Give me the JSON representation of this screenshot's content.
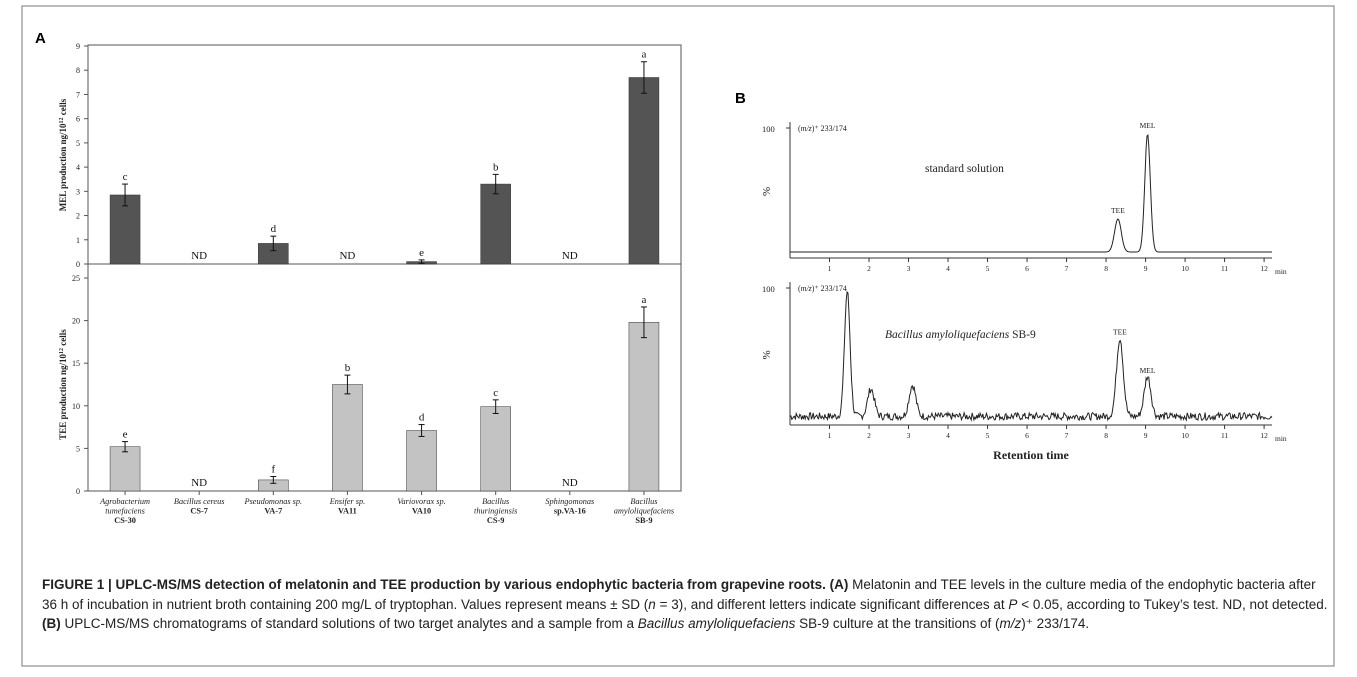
{
  "figure": {
    "panel_a_label": "A",
    "panel_b_label": "B"
  },
  "chart_data": [
    {
      "type": "bar",
      "panel": "A",
      "ylabel": "MEL production ng/10¹² cells",
      "ylim": [
        0,
        9
      ],
      "yticks": [
        0,
        1,
        2,
        3,
        4,
        5,
        6,
        7,
        8,
        9
      ],
      "color": "#545454",
      "categories": [
        [
          "Agrobacterium",
          "tumefaciens",
          "CS-30"
        ],
        [
          "Bacillus cereus",
          "CS-7"
        ],
        [
          "Pseudomonas sp.",
          "VA-7"
        ],
        [
          "Ensifer sp.",
          "VA11"
        ],
        [
          "Variovorax sp.",
          "VA10"
        ],
        [
          "Bacillus",
          "thuringiensis",
          "CS-9"
        ],
        [
          "Sphingomonas",
          "sp.VA-16"
        ],
        [
          "Bacillus",
          "amyloliquefaciens",
          "SB-9"
        ]
      ],
      "values": [
        2.85,
        null,
        0.85,
        null,
        0.1,
        3.3,
        null,
        7.7
      ],
      "errors": [
        0.45,
        null,
        0.3,
        null,
        0.07,
        0.4,
        null,
        0.65
      ],
      "letters": [
        "c",
        "ND",
        "d",
        "ND",
        "e",
        "b",
        "ND",
        "a"
      ]
    },
    {
      "type": "bar",
      "panel": "A",
      "ylabel": "TEE production ng/10¹² cells",
      "ylim": [
        0,
        25
      ],
      "yticks": [
        0,
        5,
        10,
        15,
        20,
        25
      ],
      "color": "#c3c3c3",
      "categories": [
        [
          "Agrobacterium",
          "tumefaciens",
          "CS-30"
        ],
        [
          "Bacillus cereus",
          "CS-7"
        ],
        [
          "Pseudomonas sp.",
          "VA-7"
        ],
        [
          "Ensifer sp.",
          "VA11"
        ],
        [
          "Variovorax sp.",
          "VA10"
        ],
        [
          "Bacillus",
          "thuringiensis",
          "CS-9"
        ],
        [
          "Sphingomonas",
          "sp.VA-16"
        ],
        [
          "Bacillus",
          "amyloliquefaciens",
          "SB-9"
        ]
      ],
      "values": [
        5.2,
        null,
        1.3,
        12.5,
        7.1,
        9.9,
        null,
        19.8
      ],
      "errors": [
        0.6,
        null,
        0.4,
        1.1,
        0.7,
        0.8,
        null,
        1.8
      ],
      "letters": [
        "e",
        "ND",
        "f",
        "b",
        "d",
        "c",
        "ND",
        "a"
      ]
    },
    {
      "type": "line",
      "panel": "B",
      "ylabel": "%",
      "xlim": [
        0,
        12.2
      ],
      "xticks": [
        1,
        2,
        3,
        4,
        5,
        6,
        7,
        8,
        9,
        10,
        11,
        12
      ],
      "x_unit_label": "min",
      "transition_label": "(m/z)⁺ 233/174",
      "y_top_label": "100",
      "annotation": "standard solution",
      "peaks": [
        {
          "name": "TEE",
          "x": 8.3,
          "height": 28
        },
        {
          "name": "MEL",
          "x": 9.05,
          "height": 100
        }
      ]
    },
    {
      "type": "line",
      "panel": "B",
      "ylabel": "%",
      "xlabel": "Retention time",
      "xlim": [
        0,
        12.2
      ],
      "xticks": [
        1,
        2,
        3,
        4,
        5,
        6,
        7,
        8,
        9,
        10,
        11,
        12
      ],
      "x_unit_label": "min",
      "transition_label": "(m/z)⁺ 233/174",
      "y_top_label": "100",
      "annotation_species": "Bacillus amyloliquefaciens",
      "annotation_strain": "SB-9",
      "peaks": [
        {
          "name": "",
          "x": 1.45,
          "height": 100
        },
        {
          "name": "",
          "x": 2.05,
          "height": 22
        },
        {
          "name": "",
          "x": 3.1,
          "height": 25
        },
        {
          "name": "TEE",
          "x": 8.35,
          "height": 63
        },
        {
          "name": "MEL",
          "x": 9.05,
          "height": 32
        }
      ]
    }
  ],
  "caption": {
    "title": "FIGURE 1 | UPLC-MS/MS detection of melatonin and TEE production by various endophytic bacteria from grapevine roots.",
    "a_label": "(A)",
    "a_text_1": "Melatonin and TEE levels in the culture media of the endophytic bacteria after 36 h of incubation in nutrient broth containing 200 mg/L of tryptophan. Values represent means ± SD (",
    "n_symbol": "n",
    "a_text_2": "= 3), and different letters indicate significant differences at",
    "p_symbol": "P",
    "a_text_3": "< 0.05, according to Tukey’s test. ND, not detected.",
    "b_label": "(B)",
    "b_text_1": "UPLC-MS/MS chromatograms of standard solutions of two target analytes and a sample from a",
    "b_species": "Bacillus amyloliquefaciens",
    "b_text_2": "SB-9 culture at the transitions of (",
    "b_mz": "m/z",
    "b_text_3": ")⁺ 233/174."
  }
}
